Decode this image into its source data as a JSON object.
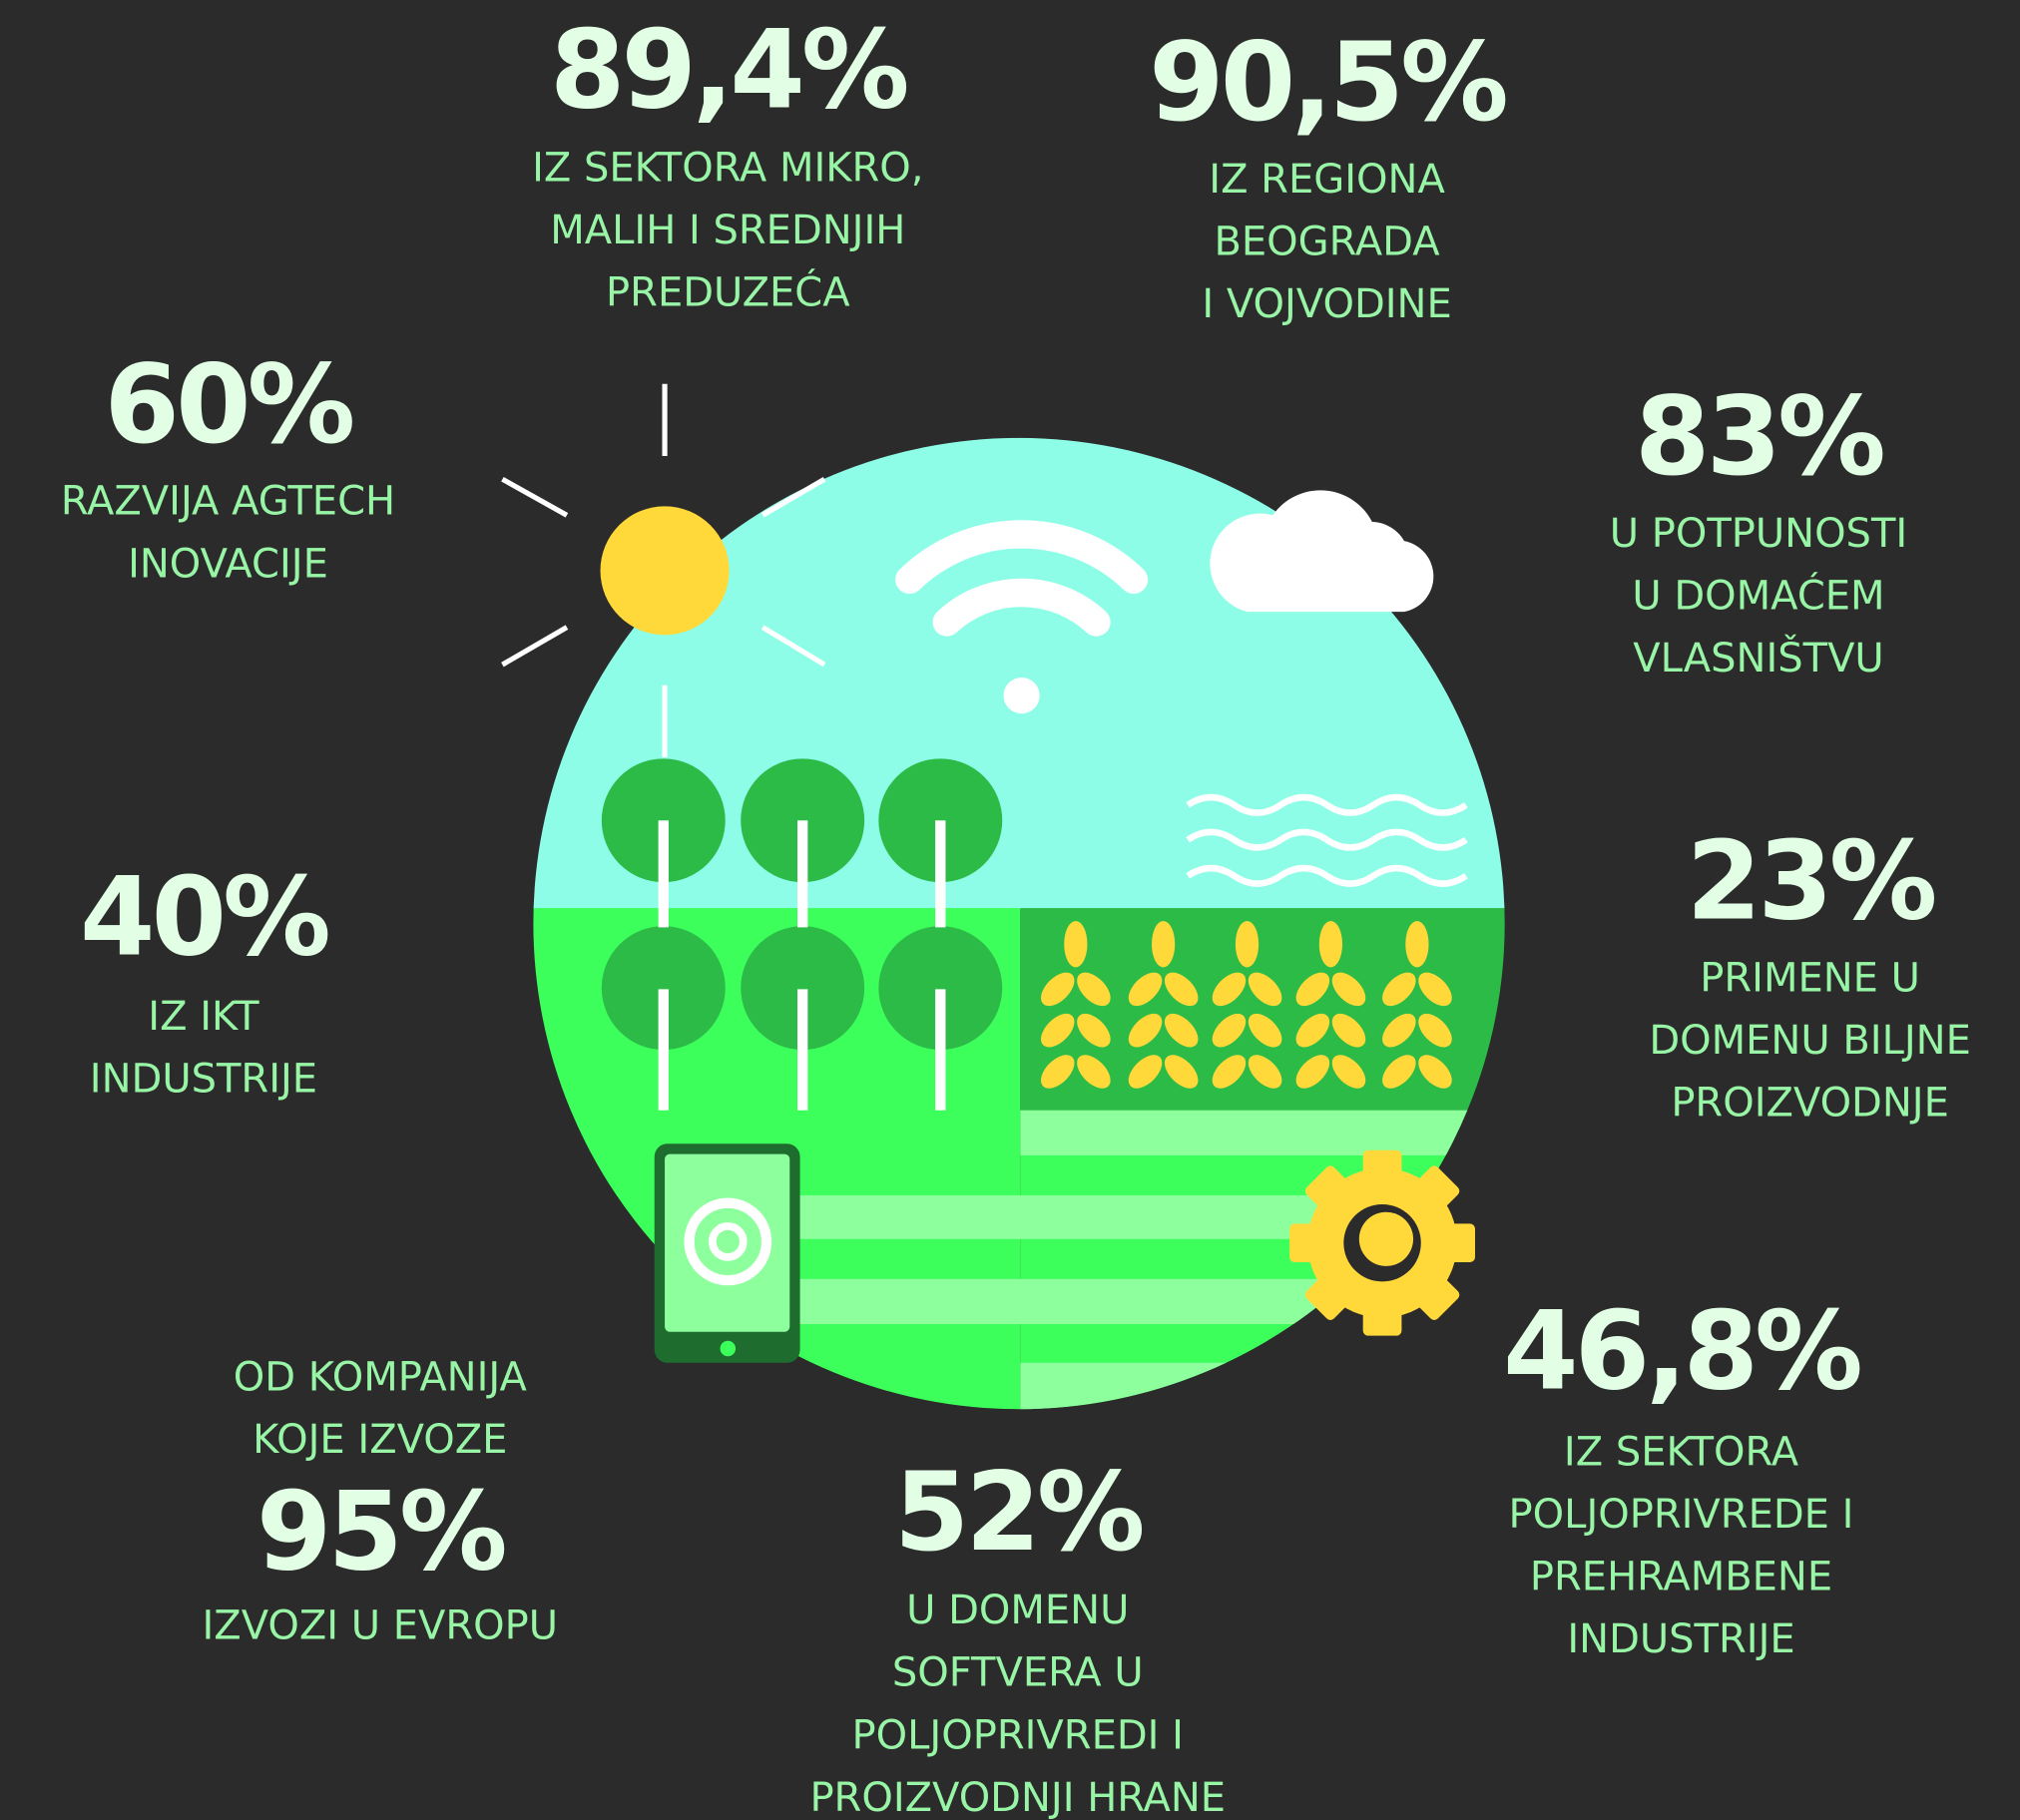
{
  "stats": [
    {
      "value": "89,4%",
      "lines": [
        "IZ SEKTORA MIKRO,",
        "MALIH I SREDNJIH",
        "PREDUZEĆA"
      ]
    },
    {
      "value": "90,5%",
      "lines": [
        "IZ REGIONA",
        "BEOGRADA",
        "I VOJVODINE"
      ]
    },
    {
      "value": "60%",
      "lines": [
        "RAZVIJA AGTECH",
        "INOVACIJE"
      ]
    },
    {
      "value": "83%",
      "lines": [
        "U POTPUNOSTI",
        "U DOMAĆEM",
        "VLASNIŠTVU"
      ]
    },
    {
      "value": "23%",
      "lines": [
        "PRIMENE U",
        "DOMENU BILJNE",
        "PROIZVODNJE"
      ]
    },
    {
      "value": "40%",
      "lines": [
        "IZ IKT",
        "INDUSTRIJE"
      ]
    },
    {
      "intro": [
        "OD KOMPANIJA",
        "KOJE IZVOZE"
      ],
      "value": "95%",
      "lines": [
        "IZVOZI U EVROPU"
      ]
    },
    {
      "value": "52%",
      "lines": [
        "U DOMENU",
        "SOFTVERA U",
        "POLJOPRIVREDI I",
        "PROIZVODNJI HRANE"
      ]
    },
    {
      "value": "46,8%",
      "lines": [
        "IZ SEKTORA",
        "POLJOPRIVREDE I",
        "PREHRAMBENE",
        "INDUSTRIJE"
      ]
    }
  ]
}
